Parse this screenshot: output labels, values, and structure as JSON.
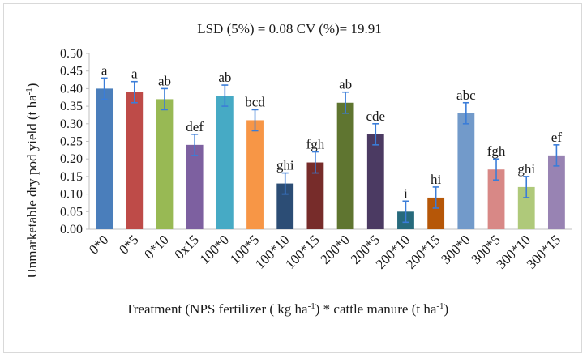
{
  "chart_data": {
    "type": "bar",
    "title": "LSD (5%) =  0.08  CV (%)= 19.91",
    "ylabel_main": "Unmarketable  dry pod yield (t ha",
    "ylabel_sup": "-1",
    "ylabel_end": ")",
    "xlabel_parts": [
      {
        "text": "Treatment (NPS fertilizer ( kg ha",
        "sup": false
      },
      {
        "text": "-1",
        "sup": true
      },
      {
        "text": ") * cattle manure (t ha",
        "sup": false
      },
      {
        "text": "-1",
        "sup": true
      },
      {
        "text": ")",
        "sup": false
      }
    ],
    "ylim": [
      0,
      0.5
    ],
    "yticks": [
      "0.00",
      "0.05",
      "0.10",
      "0.15",
      "0.20",
      "0.25",
      "0.30",
      "0.35",
      "0.40",
      "0.45",
      "0.50"
    ],
    "categories": [
      "0*0",
      "0*5",
      "0*10",
      "0x15",
      "100*0",
      "100*5",
      "100*10",
      "100*15",
      "200*0",
      "200*5",
      "200*10",
      "200*15",
      "300*0",
      "300*5",
      "300*10",
      "300*15"
    ],
    "values": [
      0.4,
      0.39,
      0.37,
      0.24,
      0.38,
      0.31,
      0.13,
      0.19,
      0.36,
      0.27,
      0.05,
      0.09,
      0.33,
      0.17,
      0.12,
      0.21
    ],
    "errors": [
      0.03,
      0.03,
      0.03,
      0.03,
      0.03,
      0.03,
      0.03,
      0.03,
      0.03,
      0.03,
      0.03,
      0.03,
      0.03,
      0.03,
      0.03,
      0.03
    ],
    "letters": [
      "a",
      "a",
      "ab",
      "def",
      "ab",
      "bcd",
      "ghi",
      "fgh",
      "ab",
      "cde",
      "i",
      "hi",
      "abc",
      "fgh",
      "ghi",
      "ef"
    ],
    "colors": [
      "#4a7ebb",
      "#be4b48",
      "#98b954",
      "#7d60a0",
      "#46aac5",
      "#f79646",
      "#2c4d75",
      "#772c2a",
      "#5f7530",
      "#4b3a62",
      "#276a7c",
      "#b65708",
      "#729aca",
      "#d88886",
      "#afc97a",
      "#9883b3"
    ],
    "error_bar_color": "#3b7dd8",
    "grid": false,
    "legend": "none"
  }
}
